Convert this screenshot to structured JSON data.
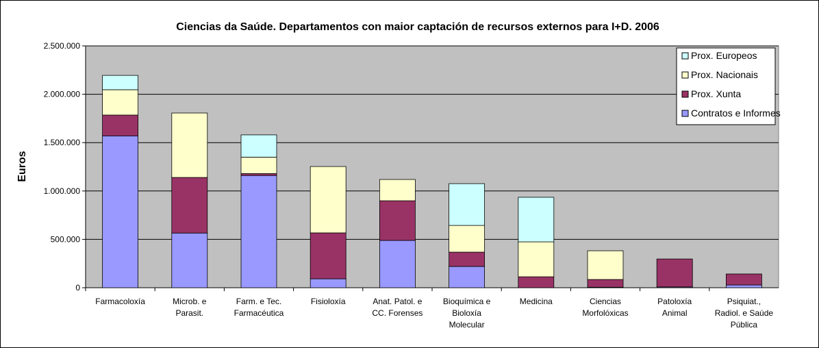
{
  "chart_data": {
    "type": "stacked_bar",
    "title": "Ciencias da Saúde. Departamentos con maior captación de recursos externos para I+D. 2006",
    "y_label": "Euros",
    "categories": [
      "Farmacoloxía",
      "Microb. e Parasit.",
      "Farm. e Tec. Farmacéutica",
      "Fisioloxía",
      "Anat. Patol. e CC. Forenses",
      "Bioquímica e Bioloxía Molecular",
      "Medicina",
      "Ciencias Morfolóxicas",
      "Patoloxía Animal",
      "Psiquiat., Radiol. e Saúde Pública"
    ],
    "series": [
      {
        "name": "Contratos e Informes",
        "color": "#9999ff",
        "values": [
          1570000,
          565000,
          1160000,
          92000,
          489000,
          220000,
          0,
          5000,
          8000,
          28000
        ]
      },
      {
        "name": "Prox. Xunta",
        "color": "#993366",
        "values": [
          215000,
          575000,
          20000,
          475000,
          410000,
          148000,
          113000,
          80000,
          289000,
          114000
        ]
      },
      {
        "name": "Prox. Nacionais",
        "color": "#ffffcc",
        "values": [
          262000,
          666000,
          170000,
          686000,
          220000,
          276000,
          361000,
          297000,
          0,
          0
        ]
      },
      {
        "name": "Prox. Europeos",
        "color": "#ccffff",
        "values": [
          148000,
          0,
          230000,
          0,
          0,
          432000,
          461000,
          0,
          0,
          0
        ]
      }
    ],
    "ylim": [
      0,
      2500000
    ],
    "yticks": [
      0,
      {
        "value": 500000,
        "label": "500.000"
      },
      {
        "value": 1000000,
        "label": "1.000.000"
      },
      {
        "value": 1500000,
        "label": "1.500.000"
      },
      {
        "value": 2000000,
        "label": "2.000.000"
      },
      {
        "value": 2500000,
        "label": "2.500.000"
      }
    ],
    "grid": true,
    "legend": "upper right"
  }
}
